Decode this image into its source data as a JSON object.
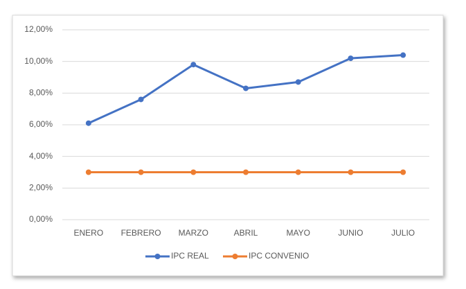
{
  "chart_data": {
    "type": "line",
    "categories": [
      "ENERO",
      "FEBRERO",
      "MARZO",
      "ABRIL",
      "MAYO",
      "JUNIO",
      "JULIO"
    ],
    "series": [
      {
        "name": "IPC REAL",
        "color": "#4472c4",
        "values": [
          6.1,
          7.6,
          9.8,
          8.3,
          8.7,
          10.2,
          10.4
        ]
      },
      {
        "name": "IPC CONVENIO",
        "color": "#ed7d31",
        "values": [
          3,
          3,
          3,
          3,
          3,
          3,
          3
        ]
      }
    ],
    "ylim": [
      0,
      12
    ],
    "yticks": [
      {
        "value": 0,
        "label": "0,00%"
      },
      {
        "value": 2,
        "label": "2,00%"
      },
      {
        "value": 4,
        "label": "4,00%"
      },
      {
        "value": 6,
        "label": "6,00%"
      },
      {
        "value": 8,
        "label": "8,00%"
      },
      {
        "value": 10,
        "label": "10,00%"
      },
      {
        "value": 12,
        "label": "12,00%"
      }
    ],
    "grid": true,
    "legend": "bottom"
  }
}
